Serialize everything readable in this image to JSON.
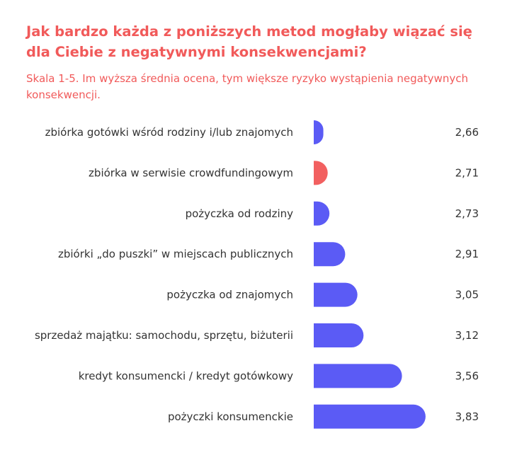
{
  "title": "Jak bardzo każda z poniższych metod mogłaby wiązać się dla Ciebie z negatywnymi konsekwencjami?",
  "subtitle": "Skala 1-5. Im wyższa średnia ocena, tym większe ryzyko wystąpienia negatywnych konsekwencji.",
  "chart_data": {
    "type": "bar",
    "orientation": "horizontal",
    "title": "Jak bardzo każda z poniższych metod mogłaby wiązać się dla Ciebie z negatywnymi konsekwencjami?",
    "subtitle": "Skala 1-5. Im wyższa średnia ocena, tym większe ryzyko wystąpienia negatywnych konsekwencji.",
    "categories": [
      "zbiórka gotówki wśród rodziny i/lub znajomych",
      "zbiórka w serwisie crowdfundingowym",
      "pożyczka od rodziny",
      "zbiórki „do puszki” w miejscach publicznych",
      "pożyczka od znajomych",
      "sprzedaż majątku: samochodu, sprzętu, biżuterii",
      "kredyt konsumencki / kredyt gotówkowy",
      "pożyczki konsumenckie"
    ],
    "values": [
      2.66,
      2.71,
      2.73,
      2.91,
      3.05,
      3.12,
      3.56,
      3.83
    ],
    "value_labels": [
      "2,66",
      "2,71",
      "2,73",
      "2,91",
      "3,05",
      "3,12",
      "3,56",
      "3,83"
    ],
    "colors": [
      "#5b5bf5",
      "#f26060",
      "#5b5bf5",
      "#5b5bf5",
      "#5b5bf5",
      "#5b5bf5",
      "#5b5bf5",
      "#5b5bf5"
    ],
    "highlight_color": "#f26060",
    "bar_color": "#5b5bf5",
    "xlim": [
      2.55,
      3.92
    ],
    "grid": false,
    "legend": "none"
  }
}
